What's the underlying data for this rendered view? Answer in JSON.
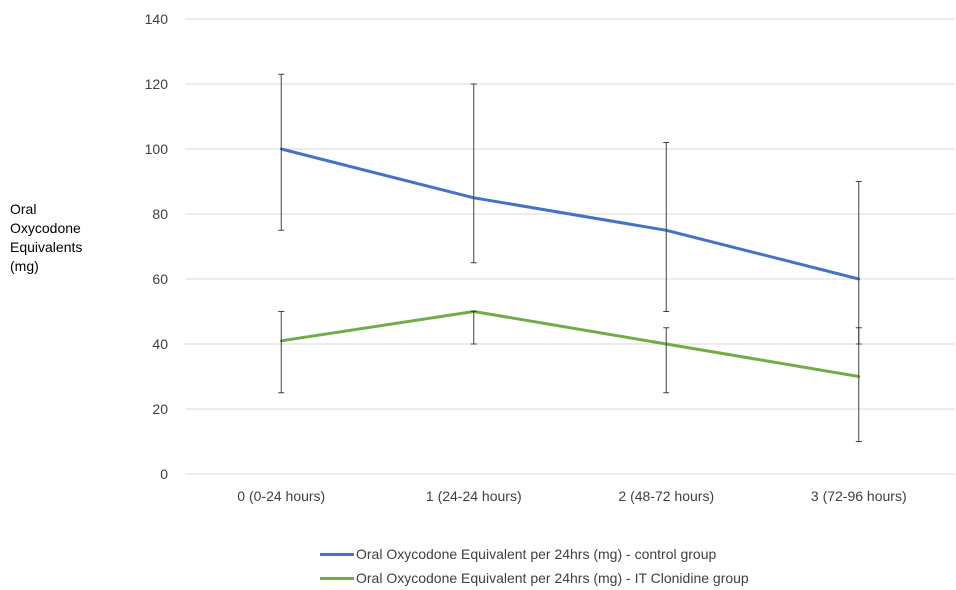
{
  "chart_data": {
    "type": "line",
    "categories": [
      "0 (0-24 hours)",
      "1 (24-24 hours)",
      "2 (48-72 hours)",
      "3 (72-96 hours)"
    ],
    "ylabel_lines": [
      "Oral",
      "Oxycodone",
      "Equivalents",
      "(mg)"
    ],
    "xlabel": "",
    "title": "",
    "ylim": [
      0,
      140
    ],
    "yticks": [
      0,
      20,
      40,
      60,
      80,
      100,
      120,
      140
    ],
    "grid": true,
    "legend_position": "bottom",
    "series": [
      {
        "name": "Oral Oxycodone Equivalent per 24hrs (mg) - control group",
        "color": "#4472c4",
        "values": [
          100,
          85,
          75,
          60
        ],
        "error_low": [
          75,
          65,
          50,
          40
        ],
        "error_high": [
          123,
          120,
          102,
          90
        ]
      },
      {
        "name": "Oral Oxycodone Equivalent per 24hrs (mg) - IT Clonidine group",
        "color": "#70ad47",
        "values": [
          41,
          50,
          40,
          30
        ],
        "error_low": [
          25,
          40,
          25,
          10
        ],
        "error_high": [
          50,
          50,
          45,
          45
        ]
      }
    ]
  }
}
